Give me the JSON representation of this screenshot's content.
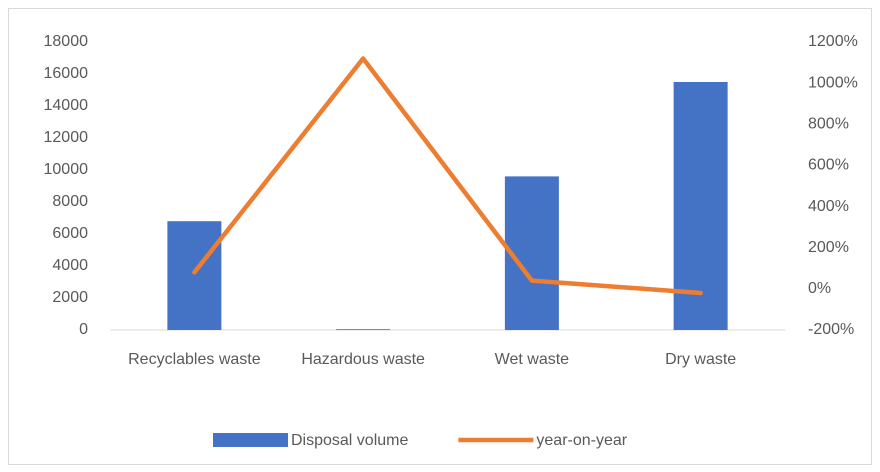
{
  "chart_data": {
    "type": "bar-line",
    "categories": [
      "Recyclables waste",
      "Hazardous waste",
      "Wet waste",
      "Dry waste"
    ],
    "series": [
      {
        "name": "Disposal volume",
        "type": "bar",
        "color": "#4472c4",
        "values": [
          6800,
          50,
          9600,
          15500
        ]
      },
      {
        "name": "year-on-year",
        "type": "line",
        "axis": "y2",
        "color": "#ed7d31",
        "values": [
          80,
          1120,
          40,
          -20
        ]
      }
    ],
    "ylim": [
      0,
      18000
    ],
    "yticks": [
      0,
      2000,
      4000,
      6000,
      8000,
      10000,
      12000,
      14000,
      16000,
      18000
    ],
    "y2lim": [
      -200,
      1200
    ],
    "y2ticks": [
      {
        "value": -200,
        "label": "-200%"
      },
      {
        "value": 0,
        "label": "0%"
      },
      {
        "value": 200,
        "label": "200%"
      },
      {
        "value": 400,
        "label": "400%"
      },
      {
        "value": 600,
        "label": "600%"
      },
      {
        "value": 800,
        "label": "800%"
      },
      {
        "value": 1000,
        "label": "1000%"
      },
      {
        "value": 1200,
        "label": "1200%"
      }
    ],
    "legend": "bottom"
  }
}
